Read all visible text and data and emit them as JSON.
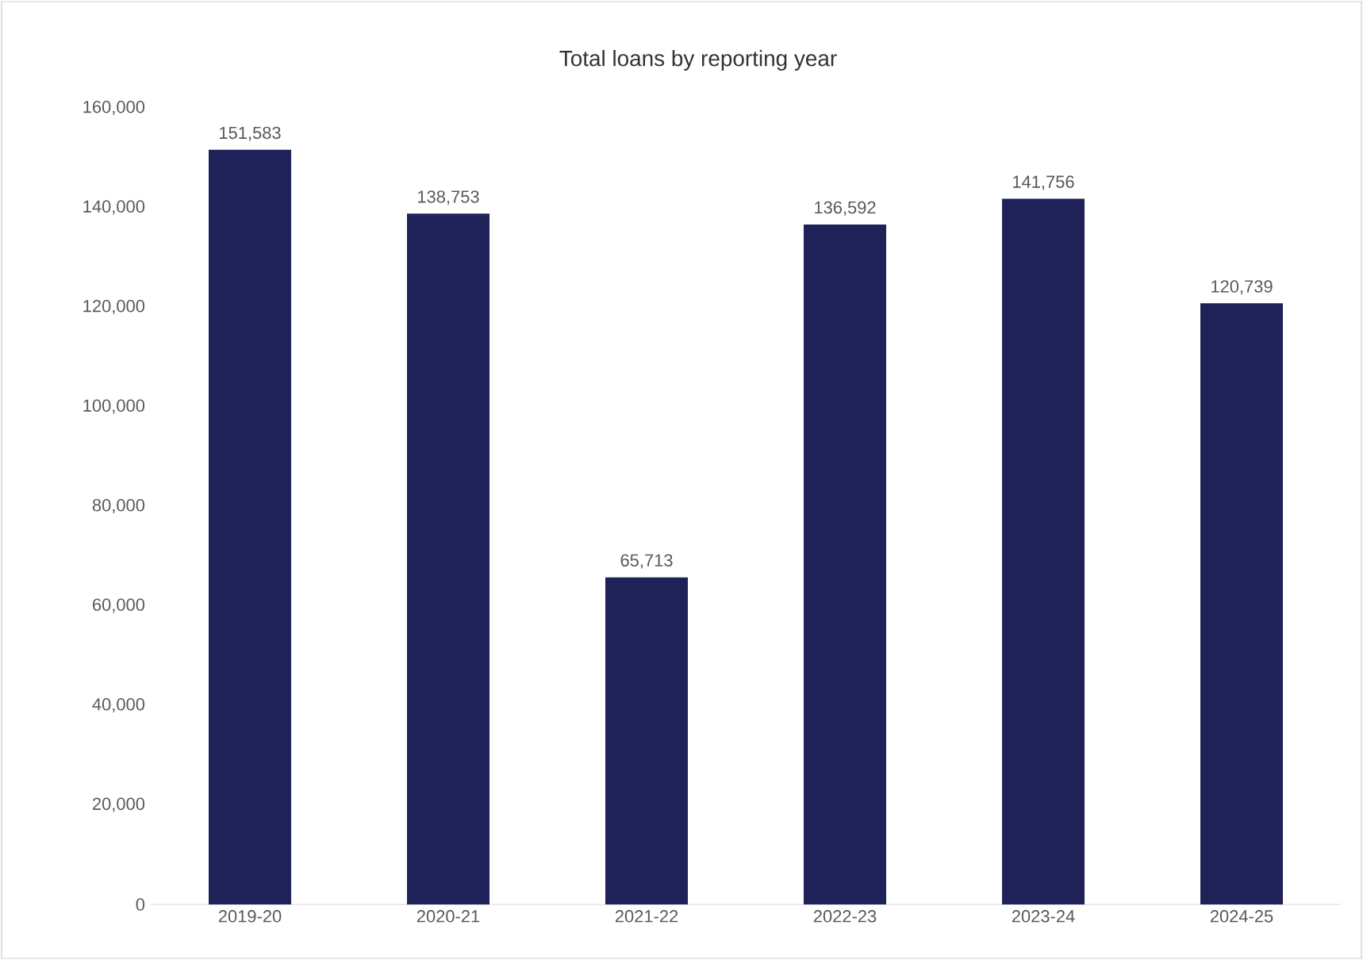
{
  "chart_data": {
    "type": "bar",
    "title": "Total loans by reporting year",
    "categories": [
      "2019-20",
      "2020-21",
      "2021-22",
      "2022-23",
      "2023-24",
      "2024-25"
    ],
    "values": [
      151583,
      138753,
      65713,
      136592,
      141756,
      120739
    ],
    "value_labels": [
      "151,583",
      "138,753",
      "65,713",
      "136,592",
      "141,756",
      "120,739"
    ],
    "color": "#1f2159",
    "ylim": [
      0,
      160000
    ],
    "yticks": [
      0,
      {
        "value": 20000,
        "label": "20,000"
      },
      {
        "value": 40000,
        "label": "40,000"
      },
      {
        "value": 60000,
        "label": "60,000"
      },
      {
        "value": 80000,
        "label": "80,000"
      },
      {
        "value": 100000,
        "label": "100,000"
      },
      {
        "value": 120000,
        "label": "120,000"
      },
      {
        "value": 140000,
        "label": "140,000"
      },
      {
        "value": 160000,
        "label": "160,000"
      }
    ],
    "grid": false
  }
}
